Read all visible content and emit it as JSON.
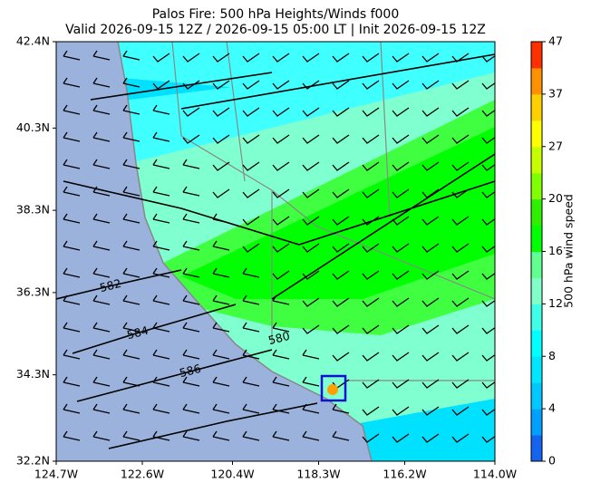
{
  "chart_data": {
    "type": "map",
    "title": "Palos Fire: 500 hPa Heights/Winds f000",
    "subtitle": "Valid 2026-09-15 12Z / 2026-09-15 05:00 LT | Init 2026-09-15 12Z",
    "xlim": [
      -124.7,
      -114.0
    ],
    "xticks": [
      {
        "value": -124.7,
        "label": "124.7W"
      },
      {
        "value": -122.6,
        "label": "122.6W"
      },
      {
        "value": -120.4,
        "label": "120.4W"
      },
      {
        "value": -118.3,
        "label": "118.3W"
      },
      {
        "value": -116.2,
        "label": "116.2W"
      },
      {
        "value": -114.0,
        "label": "114.0W"
      }
    ],
    "ylim": [
      32.2,
      42.4
    ],
    "yticks": [
      {
        "value": 32.2,
        "label": "32.2N"
      },
      {
        "value": 34.3,
        "label": "34.3N"
      },
      {
        "value": 36.3,
        "label": "36.3N"
      },
      {
        "value": 38.3,
        "label": "38.3N"
      },
      {
        "value": 40.3,
        "label": "40.3N"
      },
      {
        "value": 42.4,
        "label": "42.4N"
      }
    ],
    "contour_labels": [
      "582",
      "584",
      "586",
      "580"
    ],
    "colorbar": {
      "label": "500 hPa wind speed",
      "ticks": [
        0,
        4,
        8,
        12,
        16,
        20,
        27,
        37,
        47
      ],
      "colors": [
        "#1464f0",
        "#00a0ff",
        "#00c8ff",
        "#00e6ff",
        "#00ffff",
        "#40ffe8",
        "#80ffc8",
        "#60ff90",
        "#00ff00",
        "#30f000",
        "#80ff00",
        "#c8ff00",
        "#ffff00",
        "#ffd000",
        "#ff9000",
        "#ff3000"
      ]
    }
  }
}
